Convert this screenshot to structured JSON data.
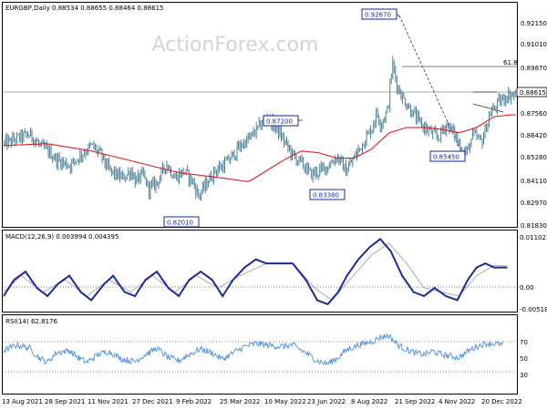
{
  "header": "EURGBP,Daily  0.88534 0.88655 0.88464 0.88615",
  "watermark": "ActionForex.com",
  "colors": {
    "candle": "#4a7e96",
    "ma": "#e0201e",
    "macd": "#1a2a9c",
    "signal": "#aaaaaa",
    "rsi": "#4a90e2",
    "frame": "#000000",
    "label_box": "#1a2aa0",
    "price_line": "#555555"
  },
  "chart_data": [
    {
      "type": "candlestick",
      "title": "EURGBP,Daily  0.88534 0.88655 0.88464 0.88615",
      "ylim": [
        0.8115,
        0.9345
      ],
      "y_ticks": [
        "0.92150",
        "0.91010",
        "0.89870",
        "0.88615",
        "0.87560",
        "0.86420",
        "0.85280",
        "0.84110",
        "0.82970",
        "0.81830"
      ],
      "current_price": "0.88615",
      "fib_label": "61.8",
      "fib_level": 0.8987,
      "labels": [
        "0.92670",
        "0.87200",
        "0.85450",
        "0.83380",
        "0.82010"
      ],
      "n_bars": 372,
      "anchors": [
        [
          0,
          0.857
        ],
        [
          20,
          0.861
        ],
        [
          30,
          0.862
        ],
        [
          40,
          0.856
        ],
        [
          50,
          0.853
        ],
        [
          60,
          0.848
        ],
        [
          75,
          0.845
        ],
        [
          90,
          0.852
        ],
        [
          100,
          0.856
        ],
        [
          110,
          0.851
        ],
        [
          120,
          0.842
        ],
        [
          135,
          0.838
        ],
        [
          145,
          0.842
        ],
        [
          150,
          0.836
        ],
        [
          158,
          0.84
        ],
        [
          165,
          0.832
        ],
        [
          175,
          0.836
        ],
        [
          185,
          0.846
        ],
        [
          195,
          0.838
        ],
        [
          205,
          0.842
        ],
        [
          215,
          0.836
        ],
        [
          222,
          0.828
        ],
        [
          232,
          0.836
        ],
        [
          240,
          0.842
        ],
        [
          250,
          0.845
        ],
        [
          260,
          0.85
        ],
        [
          270,
          0.856
        ],
        [
          280,
          0.86
        ],
        [
          290,
          0.866
        ],
        [
          300,
          0.872
        ],
        [
          310,
          0.866
        ],
        [
          320,
          0.858
        ],
        [
          330,
          0.85
        ],
        [
          340,
          0.846
        ],
        [
          350,
          0.84
        ],
        [
          360,
          0.842
        ],
        [
          370,
          0.845
        ],
        [
          380,
          0.85
        ],
        [
          390,
          0.842
        ],
        [
          398,
          0.848
        ],
        [
          410,
          0.858
        ],
        [
          420,
          0.866
        ],
        [
          425,
          0.874
        ],
        [
          430,
          0.868
        ],
        [
          438,
          0.876
        ],
        [
          443,
          0.902
        ],
        [
          448,
          0.89
        ],
        [
          455,
          0.882
        ],
        [
          465,
          0.875
        ],
        [
          475,
          0.868
        ],
        [
          485,
          0.864
        ],
        [
          495,
          0.86
        ],
        [
          505,
          0.868
        ],
        [
          515,
          0.862
        ],
        [
          520,
          0.855
        ],
        [
          528,
          0.852
        ],
        [
          535,
          0.862
        ],
        [
          545,
          0.858
        ],
        [
          555,
          0.874
        ],
        [
          565,
          0.88
        ],
        [
          575,
          0.884
        ],
        [
          585,
          0.884
        ]
      ],
      "ma_anchors": [
        [
          0,
          0.856
        ],
        [
          50,
          0.857
        ],
        [
          100,
          0.853
        ],
        [
          150,
          0.847
        ],
        [
          200,
          0.841
        ],
        [
          250,
          0.838
        ],
        [
          280,
          0.836
        ],
        [
          300,
          0.842
        ],
        [
          320,
          0.848
        ],
        [
          340,
          0.853
        ],
        [
          360,
          0.852
        ],
        [
          380,
          0.849
        ],
        [
          400,
          0.849
        ],
        [
          420,
          0.854
        ],
        [
          440,
          0.863
        ],
        [
          460,
          0.866
        ],
        [
          480,
          0.866
        ],
        [
          500,
          0.865
        ],
        [
          520,
          0.863
        ],
        [
          540,
          0.866
        ],
        [
          560,
          0.872
        ],
        [
          580,
          0.873
        ]
      ]
    },
    {
      "type": "line",
      "title": "MACD(12,26,9) 0.003994 0.004395",
      "ylim": [
        -0.0068,
        0.0124
      ],
      "y_ticks": [
        "0.011023",
        "0.00",
        "-0.005182"
      ],
      "macd_anchors": [
        [
          0,
          -0.003
        ],
        [
          12,
          0.001
        ],
        [
          25,
          0.003
        ],
        [
          38,
          -0.001
        ],
        [
          50,
          -0.003
        ],
        [
          62,
          0.0
        ],
        [
          75,
          0.002
        ],
        [
          88,
          -0.002
        ],
        [
          100,
          -0.004
        ],
        [
          115,
          0.0
        ],
        [
          125,
          0.002
        ],
        [
          138,
          -0.002
        ],
        [
          150,
          -0.003
        ],
        [
          162,
          0.001
        ],
        [
          175,
          0.003
        ],
        [
          188,
          -0.001
        ],
        [
          200,
          -0.003
        ],
        [
          212,
          0.001
        ],
        [
          225,
          0.003
        ],
        [
          238,
          0.001
        ],
        [
          250,
          -0.003
        ],
        [
          262,
          0.001
        ],
        [
          275,
          0.004
        ],
        [
          288,
          0.006
        ],
        [
          300,
          0.005
        ],
        [
          315,
          0.005
        ],
        [
          330,
          0.005
        ],
        [
          345,
          0.001
        ],
        [
          358,
          -0.004
        ],
        [
          370,
          -0.005
        ],
        [
          382,
          -0.002
        ],
        [
          392,
          0.002
        ],
        [
          405,
          0.006
        ],
        [
          418,
          0.009
        ],
        [
          430,
          0.011
        ],
        [
          442,
          0.008
        ],
        [
          455,
          0.002
        ],
        [
          468,
          -0.002
        ],
        [
          480,
          -0.003
        ],
        [
          492,
          -0.001
        ],
        [
          505,
          -0.003
        ],
        [
          518,
          -0.004
        ],
        [
          530,
          0.001
        ],
        [
          540,
          0.004
        ],
        [
          550,
          0.005
        ],
        [
          560,
          0.004
        ],
        [
          575,
          0.004
        ]
      ],
      "signal_anchors": [
        [
          0,
          -0.002
        ],
        [
          20,
          0.002
        ],
        [
          45,
          -0.002
        ],
        [
          70,
          0.001
        ],
        [
          95,
          -0.003
        ],
        [
          120,
          0.001
        ],
        [
          145,
          -0.002
        ],
        [
          170,
          0.002
        ],
        [
          195,
          -0.002
        ],
        [
          220,
          0.002
        ],
        [
          245,
          -0.001
        ],
        [
          270,
          0.002
        ],
        [
          300,
          0.005
        ],
        [
          330,
          0.005
        ],
        [
          355,
          -0.001
        ],
        [
          375,
          -0.004
        ],
        [
          395,
          0.001
        ],
        [
          420,
          0.007
        ],
        [
          440,
          0.01
        ],
        [
          460,
          0.005
        ],
        [
          480,
          -0.001
        ],
        [
          500,
          -0.002
        ],
        [
          520,
          -0.003
        ],
        [
          540,
          0.002
        ],
        [
          560,
          0.0045
        ],
        [
          575,
          0.0044
        ]
      ]
    },
    {
      "type": "line",
      "title": "RSI(14) 62.8176",
      "ylim": [
        0,
        100
      ],
      "y_ticks": [
        "70",
        "50",
        "30"
      ],
      "rsi_anchors": [
        [
          0,
          55
        ],
        [
          15,
          62
        ],
        [
          30,
          58
        ],
        [
          40,
          46
        ],
        [
          50,
          40
        ],
        [
          60,
          52
        ],
        [
          75,
          55
        ],
        [
          85,
          46
        ],
        [
          95,
          40
        ],
        [
          108,
          50
        ],
        [
          120,
          54
        ],
        [
          135,
          44
        ],
        [
          150,
          41
        ],
        [
          162,
          50
        ],
        [
          175,
          58
        ],
        [
          188,
          46
        ],
        [
          200,
          42
        ],
        [
          212,
          50
        ],
        [
          225,
          57
        ],
        [
          238,
          52
        ],
        [
          250,
          44
        ],
        [
          262,
          52
        ],
        [
          275,
          60
        ],
        [
          288,
          64
        ],
        [
          300,
          62
        ],
        [
          315,
          60
        ],
        [
          330,
          62
        ],
        [
          345,
          52
        ],
        [
          358,
          42
        ],
        [
          370,
          38
        ],
        [
          382,
          46
        ],
        [
          392,
          56
        ],
        [
          405,
          62
        ],
        [
          420,
          66
        ],
        [
          430,
          72
        ],
        [
          440,
          74
        ],
        [
          450,
          62
        ],
        [
          460,
          56
        ],
        [
          470,
          52
        ],
        [
          480,
          50
        ],
        [
          490,
          54
        ],
        [
          500,
          50
        ],
        [
          510,
          48
        ],
        [
          520,
          46
        ],
        [
          530,
          54
        ],
        [
          540,
          60
        ],
        [
          550,
          64
        ],
        [
          560,
          64
        ],
        [
          570,
          62
        ]
      ]
    }
  ],
  "x_labels": [
    "13 Aug 2021",
    "28 Sep 2021",
    "11 Nov 2021",
    "27 Dec 2021",
    "9 Feb 2022",
    "25 Mar 2022",
    "10 May 2022",
    "23 Jun 2022",
    "8 Aug 2022",
    "21 Sep 2022",
    "4 Nov 2022",
    "20 Dec 2022"
  ]
}
